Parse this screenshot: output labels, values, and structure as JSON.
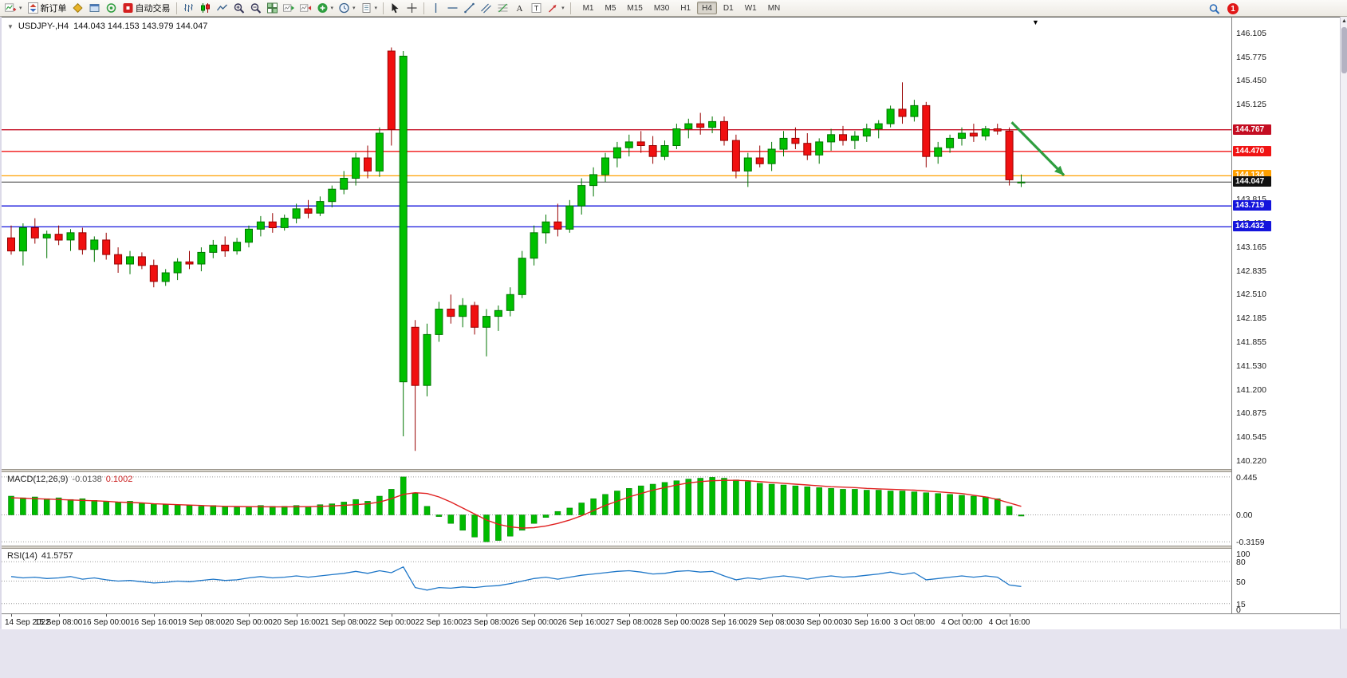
{
  "toolbar": {
    "buttons": [
      {
        "name": "new-chart",
        "icon": "new-chart",
        "dropdown": true
      },
      {
        "name": "new-order",
        "icon": "order",
        "label": "新订单"
      },
      {
        "name": "metaeditor",
        "icon": "metaeditor"
      },
      {
        "name": "strategy-tester",
        "icon": "tester"
      },
      {
        "name": "algo",
        "icon": "algo"
      },
      {
        "name": "auto-trading",
        "icon": "autotrade",
        "label": "自动交易"
      },
      {
        "name": "sep"
      },
      {
        "name": "bar-chart",
        "icon": "bars"
      },
      {
        "name": "candle-chart",
        "icon": "candles"
      },
      {
        "name": "line-chart",
        "icon": "line"
      },
      {
        "name": "zoom-in",
        "icon": "zoom-in"
      },
      {
        "name": "zoom-out",
        "icon": "zoom-out"
      },
      {
        "name": "tile-windows",
        "icon": "tiles"
      },
      {
        "name": "auto-scroll",
        "icon": "autoscroll"
      },
      {
        "name": "chart-shift",
        "icon": "chartshift"
      },
      {
        "name": "add-indicator",
        "icon": "indicator-add",
        "dropdown": true
      },
      {
        "name": "periods",
        "icon": "clock",
        "dropdown": true
      },
      {
        "name": "templates",
        "icon": "template",
        "dropdown": true
      },
      {
        "name": "sep"
      },
      {
        "name": "cursor",
        "icon": "cursor"
      },
      {
        "name": "crosshair",
        "icon": "crosshair"
      },
      {
        "name": "sep"
      },
      {
        "name": "vertical-line",
        "icon": "vline"
      },
      {
        "name": "horizontal-line",
        "icon": "hline"
      },
      {
        "name": "trendline",
        "icon": "trendline"
      },
      {
        "name": "channel",
        "icon": "channel"
      },
      {
        "name": "fibonacci",
        "icon": "fibo"
      },
      {
        "name": "text",
        "icon": "text-a"
      },
      {
        "name": "text-label",
        "icon": "text-t"
      },
      {
        "name": "arrows",
        "icon": "arrows",
        "dropdown": true
      },
      {
        "name": "sep"
      }
    ],
    "timeframes": [
      "M1",
      "M5",
      "M15",
      "M30",
      "H1",
      "H4",
      "D1",
      "W1",
      "MN"
    ],
    "active_timeframe": "H4",
    "notification_count": "1"
  },
  "chart_header": {
    "symbol_period": "USDJPY-,H4",
    "ohlc": "144.043 144.153 143.979 144.047"
  },
  "chart_data": {
    "type": "candlestick",
    "symbol": "USDJPY-",
    "period": "H4",
    "price_min": 140.1,
    "price_max": 146.3,
    "price_axis_labels": [
      "146.105",
      "145.775",
      "145.450",
      "145.125",
      "144.800",
      "144.470",
      "144.145",
      "143.815",
      "143.490",
      "143.165",
      "142.835",
      "142.510",
      "142.185",
      "141.855",
      "141.530",
      "141.200",
      "140.875",
      "140.545",
      "140.220"
    ],
    "hlines": [
      {
        "price": 144.767,
        "label": "144.767",
        "color": "#c40d22"
      },
      {
        "price": 144.47,
        "label": "144.470",
        "color": "#f01414"
      },
      {
        "price": 144.134,
        "label": "144.134",
        "color": "#ffA000"
      },
      {
        "price": 143.719,
        "label": "143.719",
        "color": "#1414dc"
      },
      {
        "price": 143.432,
        "label": "143.432",
        "color": "#1414dc"
      }
    ],
    "current_price": {
      "value": 144.047,
      "label": "144.047",
      "color": "#111111"
    },
    "colors": {
      "up": "#00c000",
      "up_border": "#007500",
      "down": "#f01010",
      "down_border": "#980000",
      "hist": "#00bb00",
      "signal": "#e02020",
      "rsi": "#1f77c8",
      "current": "#3a3a3a"
    },
    "candles": [
      [
        143.28,
        143.45,
        143.05,
        143.1
      ],
      [
        143.1,
        143.48,
        142.9,
        143.42
      ],
      [
        143.42,
        143.55,
        143.2,
        143.28
      ],
      [
        143.28,
        143.38,
        143.0,
        143.33
      ],
      [
        143.33,
        143.45,
        143.18,
        143.25
      ],
      [
        143.25,
        143.4,
        143.1,
        143.35
      ],
      [
        143.35,
        143.42,
        143.05,
        143.12
      ],
      [
        143.12,
        143.3,
        142.95,
        143.25
      ],
      [
        143.25,
        143.35,
        142.98,
        143.05
      ],
      [
        143.05,
        143.15,
        142.8,
        142.92
      ],
      [
        142.92,
        143.1,
        142.78,
        143.02
      ],
      [
        143.02,
        143.08,
        142.85,
        142.9
      ],
      [
        142.9,
        142.98,
        142.6,
        142.68
      ],
      [
        142.68,
        142.85,
        142.62,
        142.8
      ],
      [
        142.8,
        143.0,
        142.7,
        142.95
      ],
      [
        142.95,
        143.1,
        142.85,
        142.92
      ],
      [
        142.92,
        143.15,
        142.82,
        143.08
      ],
      [
        143.08,
        143.25,
        143.0,
        143.18
      ],
      [
        143.18,
        143.3,
        143.02,
        143.1
      ],
      [
        143.1,
        143.28,
        143.05,
        143.22
      ],
      [
        143.22,
        143.45,
        143.15,
        143.4
      ],
      [
        143.4,
        143.58,
        143.3,
        143.5
      ],
      [
        143.5,
        143.62,
        143.35,
        143.42
      ],
      [
        143.42,
        143.6,
        143.38,
        143.55
      ],
      [
        143.55,
        143.75,
        143.48,
        143.68
      ],
      [
        143.68,
        143.8,
        143.55,
        143.62
      ],
      [
        143.62,
        143.85,
        143.58,
        143.78
      ],
      [
        143.78,
        144.0,
        143.7,
        143.95
      ],
      [
        143.95,
        144.2,
        143.88,
        144.1
      ],
      [
        144.1,
        144.45,
        144.0,
        144.38
      ],
      [
        144.38,
        144.55,
        144.1,
        144.2
      ],
      [
        144.2,
        144.8,
        144.12,
        144.72
      ],
      [
        145.85,
        145.9,
        144.55,
        144.77
      ],
      [
        141.3,
        145.85,
        140.55,
        145.78
      ],
      [
        142.05,
        142.15,
        140.35,
        141.25
      ],
      [
        141.25,
        142.1,
        141.1,
        141.95
      ],
      [
        141.95,
        142.4,
        141.85,
        142.3
      ],
      [
        142.3,
        142.5,
        142.1,
        142.2
      ],
      [
        142.2,
        142.45,
        142.05,
        142.35
      ],
      [
        142.35,
        142.4,
        141.95,
        142.05
      ],
      [
        142.05,
        142.3,
        141.65,
        142.2
      ],
      [
        142.2,
        142.35,
        142.0,
        142.28
      ],
      [
        142.28,
        142.6,
        142.2,
        142.5
      ],
      [
        142.5,
        143.1,
        142.45,
        143.0
      ],
      [
        143.0,
        143.45,
        142.9,
        143.35
      ],
      [
        143.35,
        143.6,
        143.2,
        143.5
      ],
      [
        143.5,
        143.75,
        143.3,
        143.4
      ],
      [
        143.4,
        143.8,
        143.35,
        143.72
      ],
      [
        143.72,
        144.1,
        143.6,
        144.0
      ],
      [
        144.0,
        144.25,
        143.85,
        144.15
      ],
      [
        144.15,
        144.45,
        144.05,
        144.38
      ],
      [
        144.38,
        144.6,
        144.25,
        144.52
      ],
      [
        144.52,
        144.7,
        144.4,
        144.6
      ],
      [
        144.6,
        144.75,
        144.45,
        144.55
      ],
      [
        144.55,
        144.68,
        144.3,
        144.4
      ],
      [
        144.4,
        144.62,
        144.35,
        144.55
      ],
      [
        144.55,
        144.85,
        144.5,
        144.78
      ],
      [
        144.78,
        144.92,
        144.65,
        144.85
      ],
      [
        144.85,
        145.0,
        144.7,
        144.8
      ],
      [
        144.8,
        144.95,
        144.72,
        144.88
      ],
      [
        144.88,
        144.95,
        144.55,
        144.62
      ],
      [
        144.62,
        144.7,
        144.1,
        144.2
      ],
      [
        144.2,
        144.45,
        143.98,
        144.38
      ],
      [
        144.38,
        144.55,
        144.25,
        144.3
      ],
      [
        144.3,
        144.6,
        144.2,
        144.5
      ],
      [
        144.5,
        144.75,
        144.4,
        144.65
      ],
      [
        144.65,
        144.8,
        144.5,
        144.58
      ],
      [
        144.58,
        144.72,
        144.35,
        144.42
      ],
      [
        144.42,
        144.65,
        144.3,
        144.6
      ],
      [
        144.6,
        144.78,
        144.48,
        144.7
      ],
      [
        144.7,
        144.82,
        144.55,
        144.62
      ],
      [
        144.62,
        144.75,
        144.5,
        144.68
      ],
      [
        144.68,
        144.85,
        144.6,
        144.78
      ],
      [
        144.78,
        144.9,
        144.65,
        144.85
      ],
      [
        144.85,
        145.1,
        144.8,
        145.05
      ],
      [
        145.05,
        145.42,
        144.85,
        144.95
      ],
      [
        144.95,
        145.18,
        144.88,
        145.1
      ],
      [
        145.1,
        145.15,
        144.25,
        144.4
      ],
      [
        144.4,
        144.6,
        144.3,
        144.52
      ],
      [
        144.52,
        144.7,
        144.45,
        144.65
      ],
      [
        144.65,
        144.8,
        144.55,
        144.72
      ],
      [
        144.72,
        144.85,
        144.6,
        144.68
      ],
      [
        144.68,
        144.82,
        144.62,
        144.78
      ],
      [
        144.78,
        144.85,
        144.7,
        144.75
      ],
      [
        144.75,
        144.8,
        144.0,
        144.08
      ],
      [
        144.043,
        144.153,
        143.979,
        144.047
      ]
    ],
    "time_labels": [
      "14 Sep 2022",
      "15 Sep 08:00",
      "16 Sep 00:00",
      "16 Sep 16:00",
      "19 Sep 08:00",
      "20 Sep 00:00",
      "20 Sep 16:00",
      "21 Sep 08:00",
      "22 Sep 00:00",
      "22 Sep 16:00",
      "23 Sep 08:00",
      "26 Sep 00:00",
      "26 Sep 16:00",
      "27 Sep 08:00",
      "28 Sep 00:00",
      "28 Sep 16:00",
      "29 Sep 08:00",
      "30 Sep 00:00",
      "30 Sep 16:00",
      "3 Oct 08:00",
      "4 Oct 00:00",
      "4 Oct 16:00"
    ],
    "label_every": 4,
    "trend_arrow": {
      "from_idx": 84.2,
      "from_price": 144.87,
      "to_idx": 88.6,
      "to_price": 144.14,
      "color": "#2e9e3f"
    },
    "macd": {
      "label": "MACD(12,26,9)",
      "value_main": "-0.0138",
      "value_signal": "0.1002",
      "max": 0.5,
      "min": -0.36,
      "levels": [
        0.445,
        0,
        -0.3159
      ],
      "axis": [
        {
          "t": "0.445",
          "v": 0.445
        },
        {
          "t": "0.00",
          "v": 0
        },
        {
          "t": "-0.3159",
          "v": -0.3159
        }
      ],
      "histogram": [
        0.22,
        0.2,
        0.21,
        0.19,
        0.2,
        0.18,
        0.19,
        0.17,
        0.16,
        0.15,
        0.16,
        0.14,
        0.13,
        0.12,
        0.12,
        0.11,
        0.1,
        0.11,
        0.1,
        0.09,
        0.1,
        0.11,
        0.1,
        0.1,
        0.11,
        0.1,
        0.12,
        0.13,
        0.15,
        0.18,
        0.16,
        0.22,
        0.3,
        0.445,
        0.25,
        0.1,
        -0.02,
        -0.1,
        -0.18,
        -0.26,
        -0.315,
        -0.3,
        -0.25,
        -0.18,
        -0.1,
        -0.03,
        0.04,
        0.08,
        0.14,
        0.19,
        0.24,
        0.28,
        0.31,
        0.34,
        0.36,
        0.38,
        0.4,
        0.42,
        0.43,
        0.44,
        0.43,
        0.41,
        0.39,
        0.37,
        0.36,
        0.35,
        0.34,
        0.33,
        0.32,
        0.31,
        0.3,
        0.3,
        0.29,
        0.29,
        0.28,
        0.28,
        0.27,
        0.26,
        0.25,
        0.24,
        0.23,
        0.22,
        0.21,
        0.19,
        0.1,
        -0.014
      ],
      "signal": [
        0.2,
        0.195,
        0.19,
        0.185,
        0.18,
        0.175,
        0.17,
        0.165,
        0.16,
        0.15,
        0.145,
        0.14,
        0.13,
        0.125,
        0.12,
        0.115,
        0.11,
        0.105,
        0.1,
        0.098,
        0.096,
        0.095,
        0.094,
        0.094,
        0.095,
        0.096,
        0.1,
        0.105,
        0.112,
        0.12,
        0.13,
        0.15,
        0.19,
        0.24,
        0.26,
        0.25,
        0.21,
        0.15,
        0.08,
        0.01,
        -0.06,
        -0.11,
        -0.14,
        -0.155,
        -0.15,
        -0.13,
        -0.1,
        -0.06,
        -0.01,
        0.05,
        0.11,
        0.16,
        0.21,
        0.25,
        0.29,
        0.32,
        0.35,
        0.375,
        0.39,
        0.4,
        0.405,
        0.405,
        0.4,
        0.39,
        0.38,
        0.37,
        0.36,
        0.35,
        0.34,
        0.33,
        0.325,
        0.32,
        0.31,
        0.305,
        0.3,
        0.295,
        0.29,
        0.28,
        0.27,
        0.26,
        0.25,
        0.23,
        0.21,
        0.18,
        0.14,
        0.1
      ]
    },
    "rsi": {
      "label": "RSI(14)",
      "value": "41.5757",
      "levels": [
        80,
        50,
        15
      ],
      "axis": [
        {
          "t": "100",
          "v": 100
        },
        {
          "t": "80",
          "v": 80
        },
        {
          "t": "50",
          "v": 50
        },
        {
          "t": "15",
          "v": 15
        },
        {
          "t": "0",
          "v": 0
        }
      ],
      "line": [
        57,
        55,
        56,
        54,
        55,
        57,
        53,
        55,
        52,
        50,
        51,
        49,
        47,
        48,
        50,
        49,
        51,
        53,
        51,
        52,
        55,
        57,
        55,
        56,
        58,
        56,
        58,
        60,
        62,
        65,
        62,
        66,
        63,
        72,
        40,
        36,
        40,
        39,
        41,
        40,
        42,
        43,
        46,
        50,
        54,
        56,
        53,
        56,
        59,
        61,
        63,
        65,
        66,
        64,
        61,
        62,
        65,
        66,
        64,
        65,
        58,
        52,
        55,
        53,
        56,
        58,
        56,
        53,
        56,
        58,
        56,
        57,
        59,
        61,
        64,
        60,
        63,
        52,
        54,
        56,
        58,
        56,
        58,
        56,
        44,
        41.58
      ]
    }
  }
}
